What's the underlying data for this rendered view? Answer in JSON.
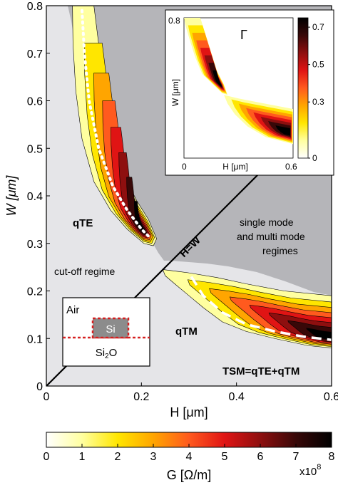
{
  "chart_data": {
    "type": "heatmap",
    "main": {
      "xlabel": "H [μm]",
      "ylabel": "W [μm]",
      "xlim": [
        0,
        0.6
      ],
      "ylim": [
        0,
        0.8
      ],
      "xticks": [
        "0",
        "0.2",
        "0.4",
        "0.6"
      ],
      "yticks": [
        "0",
        "0.1",
        "0.2",
        "0.3",
        "0.4",
        "0.5",
        "0.6",
        "0.7",
        "0.8"
      ],
      "quantity": "G",
      "regions": [
        {
          "name": "qTE",
          "H_range": [
            0.05,
            0.23
          ],
          "W_range": [
            0.3,
            0.8
          ],
          "peak_G": 8.0,
          "peak_at": {
            "H": 0.2,
            "W": 0.33
          }
        },
        {
          "name": "qTM",
          "H_range": [
            0.24,
            0.6
          ],
          "W_range": [
            0.08,
            0.26
          ],
          "peak_G": 8.0,
          "peak_at": {
            "H": 0.57,
            "W": 0.1
          }
        }
      ],
      "max_line_qTE": [
        {
          "H": 0.075,
          "W": 0.79
        },
        {
          "H": 0.08,
          "W": 0.7
        },
        {
          "H": 0.09,
          "W": 0.6
        },
        {
          "H": 0.11,
          "W": 0.5
        },
        {
          "H": 0.14,
          "W": 0.42
        },
        {
          "H": 0.17,
          "W": 0.37
        },
        {
          "H": 0.2,
          "W": 0.33
        },
        {
          "H": 0.22,
          "W": 0.31
        }
      ],
      "max_line_qTM": [
        {
          "H": 0.305,
          "W": 0.23
        },
        {
          "H": 0.33,
          "W": 0.19
        },
        {
          "H": 0.37,
          "W": 0.155
        },
        {
          "H": 0.42,
          "W": 0.13
        },
        {
          "H": 0.48,
          "W": 0.115
        },
        {
          "H": 0.54,
          "W": 0.104
        },
        {
          "H": 0.6,
          "W": 0.097
        }
      ],
      "annotations": {
        "qte": "qTE",
        "qtm": "qTM",
        "hw": "H=W",
        "cutoff": "cut-off regime",
        "multi": [
          "single mode",
          "and multi mode",
          "regimes"
        ],
        "tsm": "TSM=qTE+qTM"
      },
      "cross_section": {
        "air": "Air",
        "core": "Si",
        "substrate": "Si",
        "substrate_sub": "2",
        "substrate_tail": "O"
      }
    },
    "inset": {
      "title": "Γ",
      "xlabel": "H [μm]",
      "ylabel": "W [μm]",
      "xlim": [
        0,
        0.6
      ],
      "ylim": [
        0,
        0.8
      ],
      "x_tick_labels": [
        "0",
        "0.6"
      ],
      "y_tick_labels": [
        "0.8"
      ],
      "colorbar_ticks": [
        "0",
        "0.3",
        "0.5",
        "0.7"
      ],
      "colorbar_range": [
        0,
        0.75
      ]
    },
    "colorbar": {
      "label": "G [Ω/m]",
      "ticks": [
        "0",
        "1",
        "2",
        "3",
        "4",
        "5",
        "6",
        "7",
        "8"
      ],
      "range": [
        0,
        8
      ],
      "multiplier": "x10",
      "multiplier_exp": "8"
    },
    "colors": {
      "cutoff_region": "#e5e5e8",
      "multimode_region": "#b5b5b9",
      "colormap": [
        "#ffffff",
        "#ffffa0",
        "#ffe600",
        "#ffa500",
        "#ff5a1e",
        "#e01414",
        "#8e0f0f",
        "#380808",
        "#000000"
      ]
    }
  }
}
